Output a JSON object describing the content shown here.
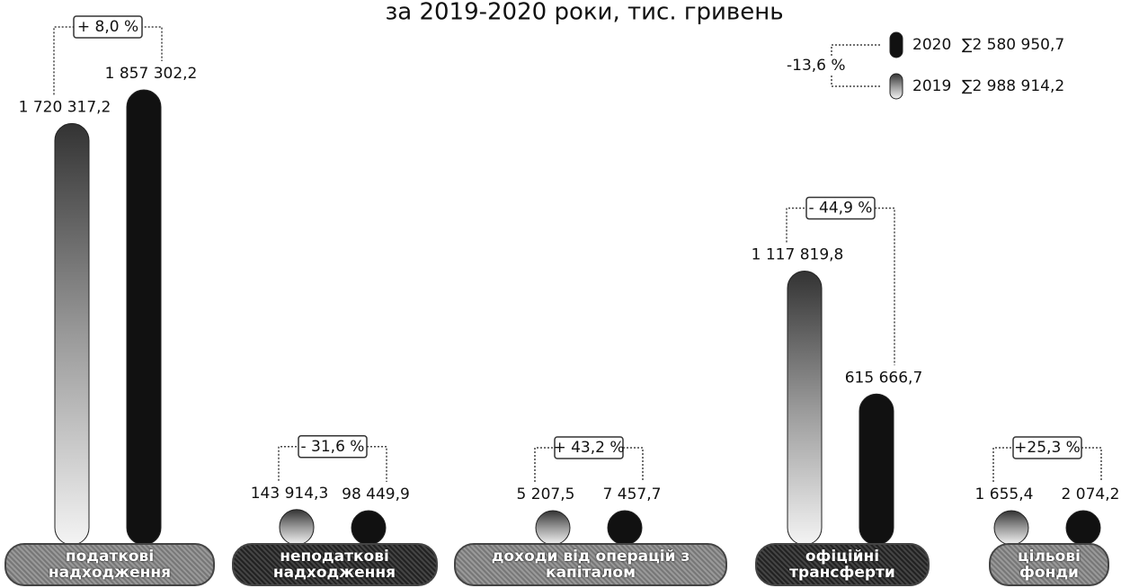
{
  "chart_data": {
    "type": "bar",
    "title": "за 2019-2020 роки, тис. гривень",
    "categories": [
      "податкові надходження",
      "неподаткові надходження",
      "доходи від операцій з капіталом",
      "офіційні трансферти",
      "цільові фонди"
    ],
    "series": [
      {
        "name": "2019",
        "color": "#8a8a8a",
        "total_label": "∑2 988 914,2",
        "values": [
          1720317.2,
          143914.3,
          5207.5,
          1117819.8,
          1655.4
        ],
        "value_labels": [
          "1 720 317,2",
          "143 914,3",
          "5 207,5",
          "1 117 819,8",
          "1 655,4"
        ]
      },
      {
        "name": "2020",
        "color": "#111111",
        "total_label": "∑2 580 950,7",
        "values": [
          1857302.2,
          98449.9,
          7457.7,
          615666.7,
          2074.2
        ],
        "value_labels": [
          "1 857 302,2",
          "98 449,9",
          "7 457,7",
          "615 666,7",
          "2 074,2"
        ]
      }
    ],
    "changes": [
      "+ 8,0 %",
      "- 31,6 %",
      "+ 43,2 %",
      "- 44,9 %",
      "+25,3 %"
    ],
    "total_change": "-13,6 %"
  }
}
